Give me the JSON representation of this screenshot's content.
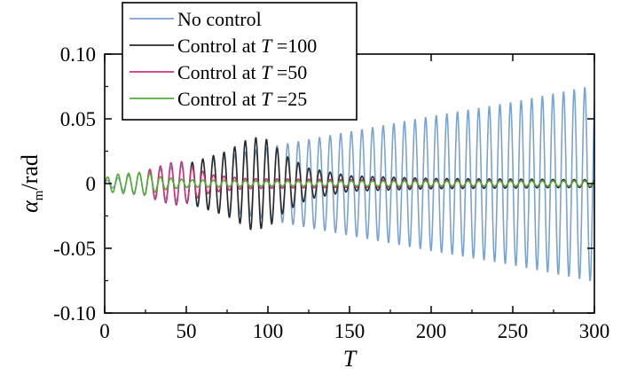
{
  "chart_data": {
    "type": "line",
    "title": "",
    "xlabel": "T",
    "ylabel_symbol": "α",
    "ylabel_sub": "m",
    "ylabel_unit": "/rad",
    "xlim": [
      0,
      300
    ],
    "ylim": [
      -0.1,
      0.1
    ],
    "grid": false,
    "legend_position": "top-left",
    "x_ticks": [
      0,
      50,
      100,
      150,
      200,
      250,
      300
    ],
    "x_tick_labels": [
      "0",
      "50",
      "100",
      "150",
      "200",
      "250",
      "300"
    ],
    "y_ticks": [
      0.1,
      0.05,
      0,
      -0.05,
      -0.1
    ],
    "y_tick_labels": [
      "0.10",
      "0.05",
      "0",
      "-0.05",
      "-0.10"
    ],
    "series": [
      {
        "name": "No control",
        "legend_prefix": "No control",
        "legend_T": "",
        "legend_value": "",
        "color": "#7ba3cf",
        "period": 6.5,
        "x_start": 0,
        "x_end": 300,
        "envelope": [
          [
            0,
            0.002
          ],
          [
            20,
            0.008
          ],
          [
            50,
            0.015
          ],
          [
            100,
            0.028
          ],
          [
            150,
            0.04
          ],
          [
            200,
            0.052
          ],
          [
            250,
            0.063
          ],
          [
            300,
            0.076
          ]
        ]
      },
      {
        "name": "Control at T=100",
        "legend_prefix": "Control at ",
        "legend_T": "T",
        "legend_value": " =100",
        "color": "#2a2a2a",
        "period": 6.5,
        "x_start": 50,
        "x_end": 300,
        "envelope": [
          [
            50,
            0.015
          ],
          [
            75,
            0.025
          ],
          [
            90,
            0.036
          ],
          [
            100,
            0.034
          ],
          [
            110,
            0.022
          ],
          [
            125,
            0.012
          ],
          [
            150,
            0.006
          ],
          [
            200,
            0.004
          ],
          [
            300,
            0.003
          ]
        ]
      },
      {
        "name": "Control at T=50",
        "legend_prefix": "Control at ",
        "legend_T": "T",
        "legend_value": " =50",
        "color": "#cc3377",
        "period": 6.5,
        "x_start": 25,
        "x_end": 300,
        "envelope": [
          [
            25,
            0.01
          ],
          [
            40,
            0.016
          ],
          [
            47,
            0.017
          ],
          [
            55,
            0.012
          ],
          [
            65,
            0.007
          ],
          [
            85,
            0.004
          ],
          [
            150,
            0.003
          ],
          [
            300,
            0.002
          ]
        ]
      },
      {
        "name": "Control at T=25",
        "legend_prefix": "Control at ",
        "legend_T": "T",
        "legend_value": " =25",
        "color": "#55aa33",
        "period": 6.5,
        "x_start": 0,
        "x_end": 300,
        "envelope": [
          [
            0,
            0.004
          ],
          [
            5,
            0.007
          ],
          [
            15,
            0.008
          ],
          [
            25,
            0.009
          ],
          [
            35,
            0.005
          ],
          [
            50,
            0.003
          ],
          [
            100,
            0.002
          ],
          [
            300,
            0.002
          ]
        ]
      }
    ]
  }
}
